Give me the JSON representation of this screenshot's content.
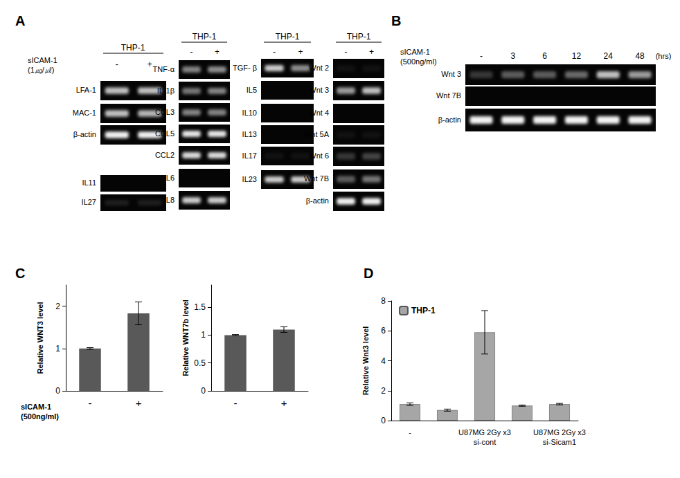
{
  "gel_panels": [
    {
      "letter": "A",
      "groups": [
        {
          "header": "THP-1",
          "treatment": "sICAM-1\n(1㎍/㎕)",
          "lanes": [
            "-",
            "+"
          ],
          "blots": [
            {
              "label": "LFA-1",
              "bands": [
                0.75,
                0.75
              ]
            },
            {
              "label": "MAC-1",
              "bands": [
                0.75,
                0.7
              ]
            },
            {
              "label": "β-actin",
              "bands": [
                0.95,
                0.95
              ]
            }
          ]
        },
        {
          "blots": [
            {
              "label": "IL11",
              "bands": [
                0,
                0
              ]
            },
            {
              "label": "IL27",
              "bands": [
                0.1,
                0.1
              ]
            }
          ]
        },
        {
          "header": "THP-1",
          "lanes": [
            "-",
            "+"
          ],
          "blots": [
            {
              "label": "TNF-α",
              "bands": [
                0.5,
                0.55
              ]
            },
            {
              "label": "IL-1β",
              "bands": [
                0.45,
                0.5
              ]
            },
            {
              "label": "CCL3",
              "bands": [
                0.5,
                0.5
              ]
            },
            {
              "label": "CCL5",
              "bands": [
                0.9,
                0.9
              ]
            },
            {
              "label": "CCL2",
              "bands": [
                0.85,
                0.85
              ]
            },
            {
              "label": "IL6",
              "bands": [
                0,
                0
              ]
            },
            {
              "label": "IL8",
              "bands": [
                0.8,
                0.8
              ]
            }
          ]
        },
        {
          "header": "THP-1",
          "lanes": [
            "-",
            "+"
          ],
          "blots": [
            {
              "label": "TGF- β",
              "bands": [
                0.8,
                0.55
              ]
            },
            {
              "label": "IL5",
              "bands": [
                0,
                0
              ]
            },
            {
              "label": "IL10",
              "bands": [
                0,
                0
              ]
            },
            {
              "label": "IL13",
              "bands": [
                0,
                0
              ]
            },
            {
              "label": "IL17",
              "bands": [
                0.05,
                0.05
              ]
            },
            {
              "label": "IL23",
              "bands": [
                0.8,
                0.8
              ]
            }
          ]
        },
        {
          "header": "THP-1",
          "lanes": [
            "-",
            "+"
          ],
          "blots": [
            {
              "label": "Wnt 2",
              "bands": [
                0.05,
                0.05
              ]
            },
            {
              "label": "Wnt 3",
              "bands": [
                0.6,
                0.75
              ]
            },
            {
              "label": "Wnt 4",
              "bands": [
                0,
                0
              ]
            },
            {
              "label": "Wnt 5A",
              "bands": [
                0.05,
                0.05
              ]
            },
            {
              "label": "Wnt 6",
              "bands": [
                0.2,
                0.25
              ]
            },
            {
              "label": "Wnt 7B",
              "bands": [
                0.35,
                0.45
              ]
            },
            {
              "label": "β-actin",
              "bands": [
                0.95,
                0.95
              ]
            }
          ]
        }
      ]
    },
    {
      "letter": "B",
      "groups": [
        {
          "treatment": "sICAM-1\n(500ng/ml)",
          "lanes": [
            "-",
            "3",
            "6",
            "12",
            "24",
            "48"
          ],
          "lane_unit": "(hrs)",
          "blots": [
            {
              "label": "Wnt 3",
              "bands": [
                0.2,
                0.35,
                0.35,
                0.4,
                0.75,
                0.6
              ]
            },
            {
              "label": "Wnt 7B",
              "bands": [
                0,
                0,
                0,
                0,
                0,
                0
              ]
            },
            {
              "label": "β-actin",
              "bands": [
                0.95,
                0.95,
                0.95,
                0.95,
                0.95,
                0.95
              ]
            }
          ]
        }
      ]
    }
  ],
  "chart_data": [
    {
      "type": "bar",
      "panel": "C",
      "categories": [
        "-",
        "+"
      ],
      "values": [
        1,
        1.83
      ],
      "errors": [
        0.02,
        0.27
      ],
      "color": "#595959",
      "ylabel": "Relative WNT3 level",
      "xlabel": "sICAM-1\n(500ng/ml)",
      "ylim": [
        0,
        2.5
      ],
      "yticks": [
        0,
        1,
        2
      ],
      "grid": false
    },
    {
      "type": "bar",
      "categories": [
        "-",
        "+"
      ],
      "values": [
        1,
        1.1
      ],
      "errors": [
        0.01,
        0.05
      ],
      "color": "#595959",
      "ylabel": "Relative WNT7b level",
      "ylim": [
        0,
        1.9
      ],
      "yticks": [
        0,
        0.5,
        1,
        1.5
      ],
      "grid": false
    },
    {
      "type": "bar",
      "panel": "D",
      "categories": [
        "-",
        null,
        "U87MG 2Gy x3\nsi-cont",
        null,
        "U87MG 2Gy x3\nsi-Sicam1"
      ],
      "series": [
        {
          "name": "THP-1",
          "color": "#a6a6a6",
          "values": [
            1.1,
            0.7,
            5.9,
            1.0,
            1.1
          ],
          "errors": [
            0.08,
            0.07,
            1.45,
            0.04,
            0.05
          ]
        }
      ],
      "ylabel": "Relative Wnt3 level",
      "ylim": [
        0,
        8
      ],
      "yticks": [
        0,
        2,
        4,
        6,
        8
      ],
      "legend": "upper left",
      "grid": false
    }
  ]
}
